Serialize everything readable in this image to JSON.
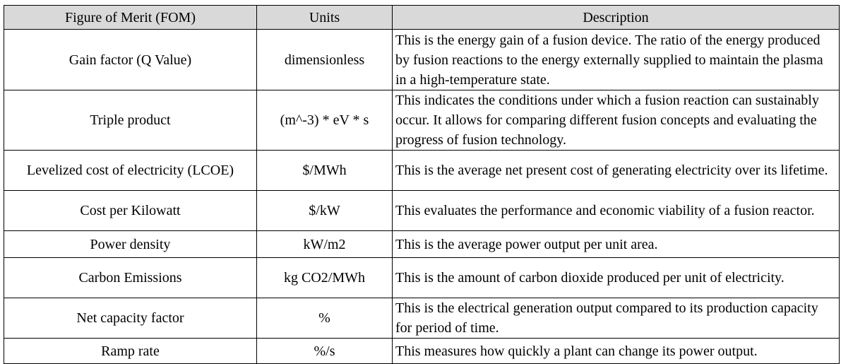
{
  "table": {
    "header": [
      "Figure of Merit (FOM)",
      "Units",
      "Description"
    ],
    "rows": [
      [
        "Gain factor (Q Value)",
        "dimensionless",
        "This is the energy gain of a fusion device. The ratio of the energy produced by fusion reactions to the energy externally supplied to maintain the plasma in a high-temperature state."
      ],
      [
        "Triple product",
        "(m^-3) * eV * s",
        "This indicates the conditions under which a fusion reaction can sustainably occur. It allows for comparing different fusion concepts and evaluating the progress of fusion technology."
      ],
      [
        "Levelized cost of electricity (LCOE)",
        "$/MWh",
        "This is the average net present cost of generating electricity over its lifetime."
      ],
      [
        "Cost per Kilowatt",
        "$/kW",
        "This evaluates the performance and economic viability of a fusion reactor."
      ],
      [
        "Power density",
        "kW/m2",
        "This is the average power output per unit area."
      ],
      [
        "Carbon Emissions",
        "kg CO2/MWh",
        "This is the amount of carbon dioxide produced per unit of electricity."
      ],
      [
        "Net capacity factor",
        "%",
        "This is the electrical generation output compared to its production capacity for period of time."
      ],
      [
        "Ramp rate",
        "%/s",
        "This measures how quickly a plant can change its power output."
      ]
    ]
  }
}
